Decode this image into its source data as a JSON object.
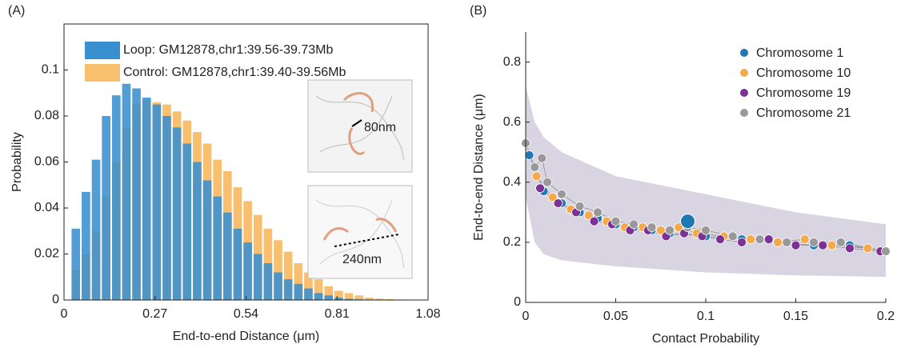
{
  "chart_data": [
    {
      "type": "histogram",
      "panel_label": "(A)",
      "x_label": "End-to-end Distance (μm)",
      "y_label": "Probability",
      "bins": [
        0.02,
        0.05,
        0.08,
        0.11,
        0.14,
        0.17,
        0.2,
        0.23,
        0.26,
        0.29,
        0.32,
        0.35,
        0.38,
        0.41,
        0.44,
        0.47,
        0.5,
        0.53,
        0.56,
        0.59,
        0.62,
        0.65,
        0.68,
        0.71,
        0.74,
        0.77,
        0.8,
        0.83,
        0.86,
        0.89,
        0.92,
        0.95,
        0.98,
        1.01,
        1.04,
        1.07
      ],
      "series": [
        {
          "name": "Control: GM12878,chr1:39.40-39.56Mb",
          "color": "#f7bf6e",
          "values": [
            0.013,
            0.02,
            0.03,
            0.045,
            0.06,
            0.075,
            0.085,
            0.087,
            0.086,
            0.085,
            0.082,
            0.078,
            0.073,
            0.068,
            0.061,
            0.056,
            0.049,
            0.043,
            0.037,
            0.031,
            0.026,
            0.021,
            0.016,
            0.012,
            0.009,
            0.006,
            0.004,
            0.003,
            0.002,
            0.001,
            0.0006,
            0.0004,
            0.0002,
            0.0001,
            0.0001
          ]
        },
        {
          "name": "Loop: GM12878,chr1:39.56-39.73Mb",
          "color": "#3a8fd0",
          "values": [
            0.031,
            0.047,
            0.061,
            0.08,
            0.089,
            0.094,
            0.092,
            0.088,
            0.085,
            0.08,
            0.075,
            0.068,
            0.06,
            0.052,
            0.045,
            0.038,
            0.031,
            0.025,
            0.02,
            0.016,
            0.012,
            0.009,
            0.007,
            0.005,
            0.003,
            0.002,
            0.001,
            0.0005,
            0.0003,
            0.0002,
            0.0001,
            0,
            0,
            0,
            0
          ]
        }
      ],
      "legend_order": [
        1,
        0
      ],
      "xlim": [
        0,
        1.08
      ],
      "xticks": [
        0,
        0.27,
        0.54,
        0.81,
        1.08
      ],
      "ylim": [
        0,
        0.12
      ],
      "yticks": [
        0,
        0.02,
        0.04,
        0.06,
        0.08,
        0.1
      ],
      "annotations": [
        "80nm",
        "240nm"
      ]
    },
    {
      "type": "scatter",
      "panel_label": "(B)",
      "x_label": "Contact Probability",
      "y_label": "End-to-end Distance (μm)",
      "band": {
        "color": "#b8b0c8",
        "x": [
          0,
          0.005,
          0.01,
          0.02,
          0.05,
          0.1,
          0.15,
          0.2
        ],
        "lower": [
          0.35,
          0.2,
          0.16,
          0.14,
          0.12,
          0.1,
          0.09,
          0.085
        ],
        "upper": [
          0.72,
          0.6,
          0.55,
          0.5,
          0.42,
          0.36,
          0.3,
          0.26
        ]
      },
      "series": [
        {
          "name": "Chromosome 1",
          "color": "#1f77b4",
          "x": [
            0.002,
            0.01,
            0.02,
            0.03,
            0.04,
            0.05,
            0.06,
            0.07,
            0.08,
            0.1,
            0.12,
            0.14,
            0.16,
            0.18,
            0.2
          ],
          "values": [
            0.49,
            0.37,
            0.33,
            0.3,
            0.28,
            0.26,
            0.25,
            0.24,
            0.23,
            0.22,
            0.21,
            0.2,
            0.19,
            0.19,
            0.17
          ]
        },
        {
          "name": "Chromosome 10",
          "color": "#f5a94a",
          "x": [
            0.006,
            0.015,
            0.025,
            0.035,
            0.045,
            0.055,
            0.065,
            0.075,
            0.085,
            0.095,
            0.11,
            0.125,
            0.14,
            0.155,
            0.17,
            0.19
          ],
          "values": [
            0.42,
            0.35,
            0.31,
            0.29,
            0.27,
            0.25,
            0.25,
            0.24,
            0.25,
            0.23,
            0.22,
            0.21,
            0.2,
            0.21,
            0.19,
            0.18
          ]
        },
        {
          "name": "Chromosome 19",
          "color": "#7b3294",
          "x": [
            0.008,
            0.018,
            0.028,
            0.038,
            0.048,
            0.058,
            0.068,
            0.078,
            0.088,
            0.098,
            0.108,
            0.12,
            0.135,
            0.15,
            0.165,
            0.18,
            0.197
          ],
          "values": [
            0.38,
            0.33,
            0.3,
            0.27,
            0.26,
            0.24,
            0.24,
            0.22,
            0.23,
            0.22,
            0.21,
            0.2,
            0.21,
            0.19,
            0.19,
            0.18,
            0.17
          ]
        },
        {
          "name": "Chromosome 21",
          "color": "#999999",
          "x": [
            0,
            0.005,
            0.009,
            0.012,
            0.02,
            0.03,
            0.04,
            0.05,
            0.06,
            0.07,
            0.08,
            0.09,
            0.1,
            0.115,
            0.13,
            0.145,
            0.16,
            0.175,
            0.2
          ],
          "values": [
            0.53,
            0.45,
            0.48,
            0.4,
            0.36,
            0.32,
            0.3,
            0.27,
            0.26,
            0.25,
            0.24,
            0.25,
            0.24,
            0.22,
            0.21,
            0.2,
            0.2,
            0.2,
            0.17
          ]
        }
      ],
      "highlight": {
        "x": 0.09,
        "y": 0.27,
        "color": "#1f77b4"
      },
      "xlim": [
        0,
        0.2
      ],
      "xticks": [
        0,
        0.05,
        0.1,
        0.15,
        0.2
      ],
      "ylim": [
        0,
        0.9
      ],
      "yticks": [
        0,
        0.2,
        0.4,
        0.6,
        0.8
      ]
    }
  ]
}
